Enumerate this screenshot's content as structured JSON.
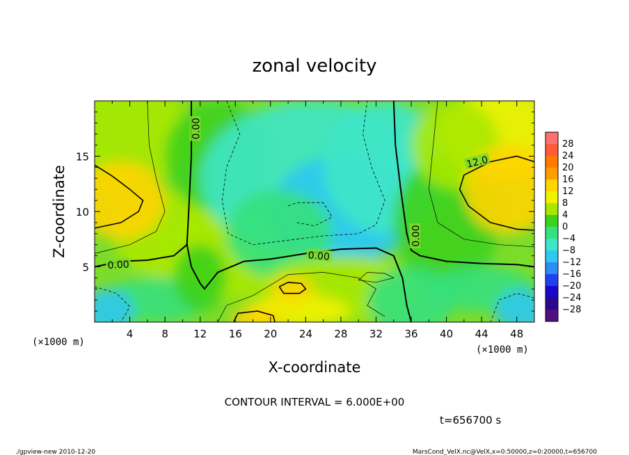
{
  "chart_data": {
    "type": "heatmap",
    "title": "zonal velocity",
    "xlabel": "X-coordinate",
    "ylabel": "Z-coordinate",
    "x_unit": "(×1000 m)",
    "z_unit": "(×1000 m)",
    "xlim": [
      0,
      50
    ],
    "ylim": [
      0,
      20
    ],
    "x_ticks": [
      4,
      8,
      12,
      16,
      20,
      24,
      28,
      32,
      36,
      40,
      44,
      48
    ],
    "y_ticks": [
      5,
      10,
      15
    ],
    "colorbar": {
      "levels": [
        28,
        24,
        20,
        16,
        12,
        8,
        4,
        0,
        -4,
        -8,
        -12,
        -16,
        -20,
        -24,
        -28
      ],
      "colors": [
        "#ff7070",
        "#ff5b35",
        "#ff7a00",
        "#ff9c00",
        "#ffd400",
        "#f2f200",
        "#a8e800",
        "#3dd21c",
        "#36e07c",
        "#3ee6c8",
        "#2ec8f0",
        "#2a8cf4",
        "#2040f0",
        "#1808c8",
        "#2a0890",
        "#501080"
      ]
    },
    "contour_labels": [
      "0.00",
      "0.00",
      "0.00",
      "0.00",
      "12.0"
    ],
    "contour_interval": "CONTOUR INTERVAL = 6.000E+00",
    "time": "t=656700 s",
    "features": [
      {
        "x": 2.5,
        "z": 11.0,
        "value": 14
      },
      {
        "x": 46.5,
        "z": 11.8,
        "value": 14
      },
      {
        "x": 22.5,
        "z": 3.0,
        "value": 12
      },
      {
        "x": 18.5,
        "z": 0.4,
        "value": 14
      },
      {
        "x": 28,
        "z": 11,
        "value": -9
      },
      {
        "x": 1.5,
        "z": 1.0,
        "value": -12
      },
      {
        "x": 48.5,
        "z": 1.0,
        "value": -12
      },
      {
        "x": 25,
        "z": 1.8,
        "value": 6
      }
    ]
  },
  "footer": {
    "left": "./gpview-new  2010-12-20",
    "right": "MarsCond_VelX.nc@VelX,x=0:50000,z=0:20000,t=656700"
  }
}
